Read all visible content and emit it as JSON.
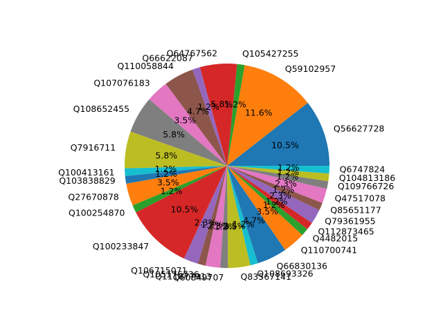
{
  "chart_data": {
    "type": "pie",
    "title": "",
    "start_angle_deg": 0,
    "direction": "counterclockwise",
    "slices": [
      {
        "label": "Q56627728",
        "percent": 10.5,
        "pct_label": "10.5%",
        "color": "#1f77b4"
      },
      {
        "label": "Q59102957",
        "percent": 11.6,
        "pct_label": "11.6%",
        "color": "#ff7f0e"
      },
      {
        "label": "Q105427255",
        "percent": 1.2,
        "pct_label": "1.2%",
        "color": "#2ca02c"
      },
      {
        "label": "Q64767562",
        "percent": 5.8,
        "pct_label": "5.8%",
        "color": "#d62728"
      },
      {
        "label": "Q66622087",
        "percent": 1.2,
        "pct_label": "1.2%",
        "color": "#9467bd"
      },
      {
        "label": "Q110058844",
        "percent": 4.7,
        "pct_label": "4.7%",
        "color": "#8c564b"
      },
      {
        "label": "Q107076183",
        "percent": 3.5,
        "pct_label": "3.5%",
        "color": "#e377c2"
      },
      {
        "label": "Q108652455",
        "percent": 5.8,
        "pct_label": "5.8%",
        "color": "#7f7f7f"
      },
      {
        "label": "Q7916711",
        "percent": 5.8,
        "pct_label": "5.8%",
        "color": "#bcbd22"
      },
      {
        "label": "Q100413161",
        "percent": 1.2,
        "pct_label": "1.2%",
        "color": "#17becf"
      },
      {
        "label": "Q103838829",
        "percent": 1.2,
        "pct_label": "1.2%",
        "color": "#1f77b4"
      },
      {
        "label": "Q27670878",
        "percent": 3.5,
        "pct_label": "3.5%",
        "color": "#ff7f0e"
      },
      {
        "label": "Q100254870",
        "percent": 1.2,
        "pct_label": "1.2%",
        "color": "#2ca02c"
      },
      {
        "label": "Q100233847",
        "percent": 10.5,
        "pct_label": "10.5%",
        "color": "#d62728"
      },
      {
        "label": "Q106715071",
        "percent": 2.3,
        "pct_label": "2.3%",
        "color": "#9467bd"
      },
      {
        "label": "Q105176736",
        "percent": 1.2,
        "pct_label": "1.2%",
        "color": "#8c564b"
      },
      {
        "label": "Q111877913",
        "percent": 2.3,
        "pct_label": "2.3%",
        "color": "#e377c2"
      },
      {
        "label": "Q60849707",
        "percent": 1.2,
        "pct_label": "1.2%",
        "color": "#7f7f7f"
      },
      {
        "label": "Q83567141",
        "percent": 3.5,
        "pct_label": "3.5%",
        "color": "#bcbd22"
      },
      {
        "label": "Q108693326",
        "percent": 1.2,
        "pct_label": "1.2%",
        "color": "#17becf"
      },
      {
        "label": "Q66830136",
        "percent": 4.7,
        "pct_label": "4.7%",
        "color": "#1f77b4"
      },
      {
        "label": "Q110700741",
        "percent": 3.5,
        "pct_label": "3.5%",
        "color": "#ff7f0e"
      },
      {
        "label": "Q4482015",
        "percent": 1.2,
        "pct_label": "1.2%",
        "color": "#2ca02c"
      },
      {
        "label": "Q112873465",
        "percent": 1.2,
        "pct_label": "1.2%",
        "color": "#d62728"
      },
      {
        "label": "Q79361955",
        "percent": 2.3,
        "pct_label": "2.3%",
        "color": "#9467bd"
      },
      {
        "label": "Q85651177",
        "percent": 1.2,
        "pct_label": "1.2%",
        "color": "#8c564b"
      },
      {
        "label": "Q47517078",
        "percent": 2.3,
        "pct_label": "2.3%",
        "color": "#e377c2"
      },
      {
        "label": "Q109766726",
        "percent": 1.2,
        "pct_label": "1.2%",
        "color": "#7f7f7f"
      },
      {
        "label": "Q104813186",
        "percent": 1.2,
        "pct_label": "1.2%",
        "color": "#bcbd22"
      },
      {
        "label": "Q6747824",
        "percent": 1.2,
        "pct_label": "1.2%",
        "color": "#17becf"
      }
    ]
  }
}
